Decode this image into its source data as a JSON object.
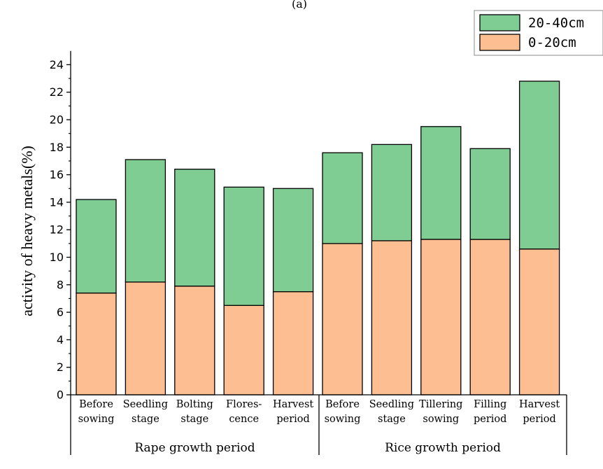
{
  "chart_data": {
    "type": "bar",
    "stacked": true,
    "panel_label": "(a)",
    "ylabel": "activity of heavy metals(%)",
    "ylim": [
      0,
      25
    ],
    "yticks": [
      0,
      2,
      4,
      6,
      8,
      10,
      12,
      14,
      16,
      18,
      20,
      22,
      24
    ],
    "categories": [
      [
        "Before",
        "sowing"
      ],
      [
        "Seedling",
        "stage"
      ],
      [
        "Bolting",
        "stage"
      ],
      [
        "Flores-",
        "cence"
      ],
      [
        "Harvest",
        "period"
      ],
      [
        "Before",
        "sowing"
      ],
      [
        "Seedling",
        "stage"
      ],
      [
        "Tillering",
        "sowing"
      ],
      [
        "Filling",
        "period"
      ],
      [
        "Harvest",
        "period"
      ]
    ],
    "groups": [
      {
        "label": "Rape growth period",
        "start": 0,
        "end": 4
      },
      {
        "label": "Rice growth period",
        "start": 5,
        "end": 9
      }
    ],
    "series": [
      {
        "name": "0-20cm",
        "color": "#fdbf92",
        "values": [
          7.4,
          8.2,
          7.9,
          6.5,
          7.5,
          11.0,
          11.2,
          11.3,
          11.3,
          10.6
        ]
      },
      {
        "name": "20-40cm",
        "color": "#7fcd93",
        "values": [
          6.8,
          8.9,
          8.5,
          8.6,
          7.5,
          6.6,
          7.0,
          8.2,
          6.6,
          12.2
        ]
      }
    ],
    "legend_order": [
      "20-40cm",
      "0-20cm"
    ],
    "legend_position": "top-right",
    "grid": false
  }
}
